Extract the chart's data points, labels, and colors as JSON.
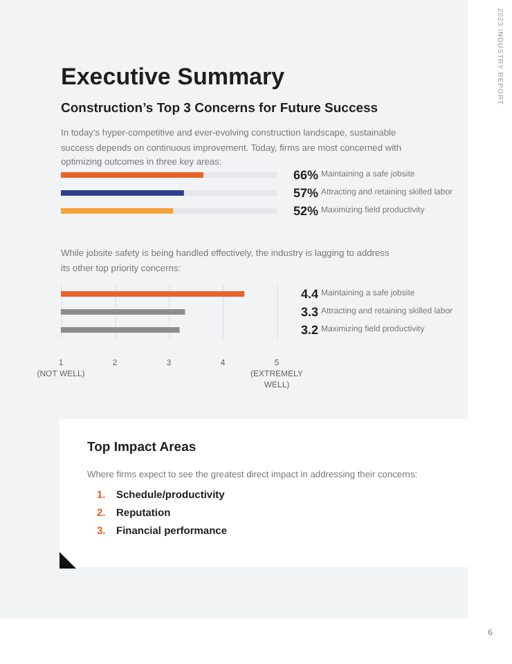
{
  "chart_data": [
    {
      "type": "bar",
      "orientation": "horizontal",
      "title": "Executive Summary",
      "subtitle": "Construction’s Top 3 Concerns for Future Success",
      "annotations": [
        "In today’s hyper-competitive and ever-evolving construction landscape, sustainable success depends on continuous improvement. Today, firms are most concerned with optimizing outcomes in three key areas:",
        "2023 INDUSTRY REPORT",
        "6"
      ],
      "categories": [
        "Maintaining a safe jobsite",
        "Attracting and retaining skilled labor",
        "Maximizing field productivity"
      ],
      "values": [
        66,
        57,
        52
      ],
      "colors": [
        "#e8622a",
        "#2e3f8f",
        "#f5a33a"
      ],
      "value_labels": [
        "66%",
        "57%",
        "52%"
      ],
      "xlim": [
        0,
        100
      ],
      "tick_labels": "y",
      "grid": false
    },
    {
      "type": "bar",
      "orientation": "horizontal",
      "subtitle": "While jobsite safety is being handled effectively, the industry is lagging to address its other top priority concerns:",
      "categories": [
        "Maintaining a safe jobsite",
        "Attracting and retaining skilled labor",
        "Maximizing field productivity"
      ],
      "values": [
        4.4,
        3.3,
        3.2
      ],
      "colors": [
        "#e8622a",
        "#8c8c8c",
        "#8c8c8c"
      ],
      "data_labels": true,
      "xlim": [
        1,
        5
      ],
      "xticks": [
        {
          "value": 1,
          "label": "1\n(NOT WELL)"
        },
        2,
        3,
        4,
        {
          "value": 5,
          "label": "5\n(EXTREMELY\nWELL)"
        }
      ],
      "grid": "x"
    },
    {
      "type": "other",
      "title": "Top Impact Areas",
      "subtitle": "Where firms expect to see the greatest direct impact in addressing their concerns:",
      "annotations": [
        "1. Schedule/productivity",
        "2. Reputation",
        "3. Financial performance"
      ]
    }
  ]
}
